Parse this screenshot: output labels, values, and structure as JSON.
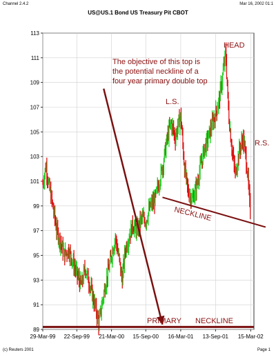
{
  "header": {
    "app_version": "Channel 2.4.2",
    "title": "US@US.1   Bond US Treasury Pit CBOT",
    "timestamp": "Mar 16, 2002 01:1"
  },
  "footer": {
    "copyright": "(c) Reuters 2001",
    "page": "Page 1"
  },
  "colors": {
    "up": "#22cc22",
    "down": "#dd1111",
    "annotation": "#7a1010"
  },
  "chart_data": {
    "type": "candlestick",
    "title": "US@US.1   Bond US Treasury Pit CBOT",
    "ylim": [
      89,
      113
    ],
    "y_ticks": [
      "89",
      "91",
      "93",
      "95",
      "97",
      "99",
      "101",
      "103",
      "105",
      "107",
      "109",
      "111",
      "113"
    ],
    "x_ticks": [
      "29-Mar-99",
      "22-Sep-99",
      "21-Mar-00",
      "15-Sep-00",
      "16-Mar-01",
      "13-Sep-01",
      "15-Mar-02"
    ],
    "grid": true,
    "close_path": [
      [
        "29-Mar-99",
        100.8
      ],
      [
        "15-Apr-99",
        102.3
      ],
      [
        "01-May-99",
        100.5
      ],
      [
        "20-May-99",
        99.0
      ],
      [
        "10-Jun-99",
        97.0
      ],
      [
        "01-Jul-99",
        96.0
      ],
      [
        "20-Jul-99",
        95.0
      ],
      [
        "10-Aug-99",
        95.5
      ],
      [
        "01-Sep-99",
        94.5
      ],
      [
        "22-Sep-99",
        93.5
      ],
      [
        "15-Oct-99",
        92.5
      ],
      [
        "05-Nov-99",
        94.0
      ],
      [
        "01-Dec-99",
        92.5
      ],
      [
        "25-Dec-99",
        91.0
      ],
      [
        "15-Jan-00",
        89.5
      ],
      [
        "10-Feb-00",
        92.0
      ],
      [
        "01-Mar-00",
        93.5
      ],
      [
        "21-Mar-00",
        95.0
      ],
      [
        "10-Apr-00",
        96.5
      ],
      [
        "01-May-00",
        94.5
      ],
      [
        "15-May-00",
        93.0
      ],
      [
        "01-Jun-00",
        95.5
      ],
      [
        "20-Jun-00",
        96.5
      ],
      [
        "10-Jul-00",
        97.5
      ],
      [
        "01-Aug-00",
        97.0
      ],
      [
        "25-Aug-00",
        98.0
      ],
      [
        "15-Sep-00",
        97.8
      ],
      [
        "10-Oct-00",
        99.0
      ],
      [
        "01-Nov-00",
        99.5
      ],
      [
        "25-Nov-00",
        101.0
      ],
      [
        "15-Dec-00",
        102.5
      ],
      [
        "05-Jan-01",
        104.5
      ],
      [
        "25-Jan-01",
        105.8
      ],
      [
        "15-Feb-01",
        104.5
      ],
      [
        "01-Mar-01",
        105.5
      ],
      [
        "16-Mar-01",
        106.3
      ],
      [
        "05-Apr-01",
        102.0
      ],
      [
        "25-Apr-01",
        100.0
      ],
      [
        "15-May-01",
        99.5
      ],
      [
        "05-Jun-01",
        100.5
      ],
      [
        "25-Jun-01",
        102.0
      ],
      [
        "15-Jul-01",
        103.5
      ],
      [
        "05-Aug-01",
        104.5
      ],
      [
        "25-Aug-01",
        105.5
      ],
      [
        "13-Sep-01",
        106.5
      ],
      [
        "01-Oct-01",
        107.5
      ],
      [
        "20-Oct-01",
        109.5
      ],
      [
        "05-Nov-01",
        111.5
      ],
      [
        "20-Nov-01",
        106.5
      ],
      [
        "05-Dec-01",
        104.0
      ],
      [
        "25-Dec-01",
        101.5
      ],
      [
        "15-Jan-02",
        103.5
      ],
      [
        "05-Feb-02",
        104.5
      ],
      [
        "25-Feb-02",
        102.0
      ],
      [
        "15-Mar-02",
        98.0
      ]
    ],
    "annotations": [
      {
        "text": "The objective of this top is",
        "kind": "note"
      },
      {
        "text": "the potential neckline of a",
        "kind": "note"
      },
      {
        "text": "four year primary double top",
        "kind": "note"
      },
      {
        "text": "HEAD",
        "kind": "label"
      },
      {
        "text": "L.S.",
        "kind": "label"
      },
      {
        "text": "R.S.",
        "kind": "label"
      },
      {
        "text": "NECKLINE",
        "kind": "label"
      },
      {
        "text": "PRIMARY",
        "kind": "label"
      },
      {
        "text": "NECKLINE",
        "kind": "label"
      }
    ],
    "neckline": {
      "from": [
        "11-Dec-00",
        99.7
      ],
      "to": [
        "28-Mar-02",
        97.4
      ]
    },
    "primary_neckline_level": 89.2,
    "arrow": {
      "from": [
        "09-Feb-00",
        108.5
      ],
      "to": [
        "11-Dec-00",
        89.4
      ]
    }
  }
}
